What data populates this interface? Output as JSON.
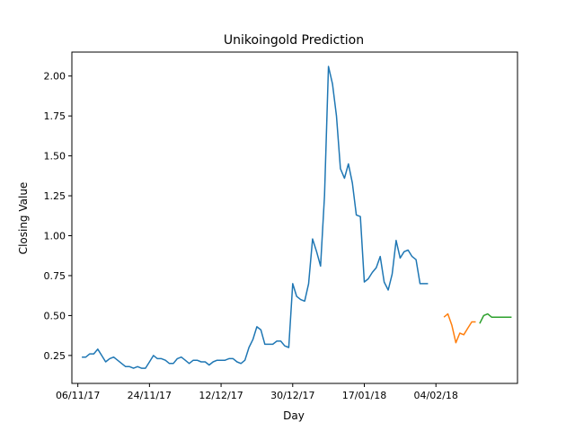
{
  "chart_data": {
    "type": "line",
    "title": "Unikoingold Prediction",
    "xlabel": "Day",
    "ylabel": "Closing Value",
    "grid": false,
    "legend": "none",
    "x_ticks": [
      "06/11/17",
      "24/11/17",
      "12/12/17",
      "30/12/17",
      "17/01/18",
      "04/02/18"
    ],
    "x_tick_days": [
      0,
      18,
      36,
      54,
      72,
      90
    ],
    "xlim": [
      -1.5,
      110.5
    ],
    "y_ticks": [
      "0.25",
      "0.50",
      "0.75",
      "1.00",
      "1.25",
      "1.50",
      "1.75",
      "2.00"
    ],
    "ylim": [
      0.075,
      2.15
    ],
    "series": [
      {
        "color": "#1f77b4",
        "x": [
          1,
          2,
          3,
          4,
          5,
          6,
          7,
          8,
          9,
          10,
          11,
          12,
          13,
          14,
          15,
          16,
          17,
          18,
          19,
          20,
          21,
          22,
          23,
          24,
          25,
          26,
          27,
          28,
          29,
          30,
          31,
          32,
          33,
          34,
          35,
          36,
          37,
          38,
          39,
          40,
          41,
          42,
          43,
          44,
          45,
          46,
          47,
          48,
          49,
          50,
          51,
          52,
          53,
          54,
          55,
          56,
          57,
          58,
          59,
          60,
          61,
          62,
          63,
          64,
          65,
          66,
          67,
          68,
          69,
          70,
          71,
          72,
          73,
          74,
          75,
          76,
          77,
          78,
          79,
          80,
          81,
          82,
          83,
          84,
          85,
          86,
          87,
          88
        ],
        "y": [
          0.24,
          0.24,
          0.26,
          0.26,
          0.29,
          0.25,
          0.21,
          0.23,
          0.24,
          0.22,
          0.2,
          0.18,
          0.18,
          0.17,
          0.18,
          0.17,
          0.17,
          0.21,
          0.25,
          0.23,
          0.23,
          0.22,
          0.2,
          0.2,
          0.23,
          0.24,
          0.22,
          0.2,
          0.22,
          0.22,
          0.21,
          0.21,
          0.19,
          0.21,
          0.22,
          0.22,
          0.22,
          0.23,
          0.23,
          0.21,
          0.2,
          0.22,
          0.3,
          0.35,
          0.43,
          0.41,
          0.32,
          0.32,
          0.32,
          0.34,
          0.34,
          0.31,
          0.3,
          0.7,
          0.62,
          0.6,
          0.59,
          0.7,
          0.98,
          0.9,
          0.81,
          1.25,
          2.06,
          1.95,
          1.75,
          1.42,
          1.36,
          1.45,
          1.33,
          1.13,
          1.12,
          0.71,
          0.73,
          0.77,
          0.8,
          0.87,
          0.71,
          0.66,
          0.76,
          0.97,
          0.86,
          0.9,
          0.91,
          0.87,
          0.85,
          0.7,
          0.7,
          0.7
        ]
      },
      {
        "color": "#ff7f0e",
        "x": [
          92,
          93,
          94,
          95,
          96,
          97,
          98,
          99,
          100
        ],
        "y": [
          0.49,
          0.51,
          0.44,
          0.33,
          0.39,
          0.38,
          0.42,
          0.46,
          0.46
        ]
      },
      {
        "color": "#2ca02c",
        "x": [
          101,
          102,
          103,
          104,
          105,
          106,
          107,
          108,
          109
        ],
        "y": [
          0.45,
          0.5,
          0.51,
          0.49,
          0.49,
          0.49,
          0.49,
          0.49,
          0.49
        ]
      }
    ]
  }
}
